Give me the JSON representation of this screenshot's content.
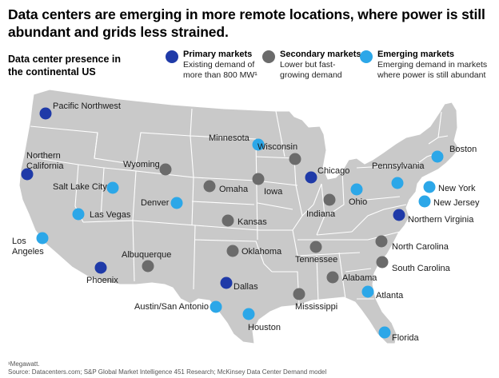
{
  "title_line1": "Data centers are emerging in more remote locations, where power is still",
  "title_line2": "abundant and grids less strained.",
  "subtitle_line1": "Data center presence in",
  "subtitle_line2": "the continental US",
  "colors": {
    "primary": "#1f3aa8",
    "secondary": "#6b6b6b",
    "emerging": "#2ca7e8",
    "land": "#c9c9c9",
    "border": "#ffffff"
  },
  "legend": [
    {
      "type": "primary",
      "title": "Primary markets",
      "line1": "Existing demand of",
      "line2": "more than 800 MW¹"
    },
    {
      "type": "secondary",
      "title": "Secondary markets",
      "line1": "Lower but fast-",
      "line2": "growing demand"
    },
    {
      "type": "emerging",
      "title": "Emerging markets",
      "line1": "Emerging demand in markets",
      "line2": "where power is still abundant"
    }
  ],
  "markets": [
    {
      "name": "Pacific Northwest",
      "type": "primary",
      "lines": [
        "Pacific Northwest"
      ]
    },
    {
      "name": "Northern California",
      "type": "primary",
      "lines": [
        "Northern",
        "California"
      ]
    },
    {
      "name": "Phoenix",
      "type": "primary",
      "lines": [
        "Phoenix"
      ]
    },
    {
      "name": "Dallas",
      "type": "primary",
      "lines": [
        "Dallas"
      ]
    },
    {
      "name": "Chicago",
      "type": "primary",
      "lines": [
        "Chicago"
      ]
    },
    {
      "name": "Northern Virginia",
      "type": "primary",
      "lines": [
        "Northern Virginia"
      ]
    },
    {
      "name": "Wyoming",
      "type": "secondary",
      "lines": [
        "Wyoming"
      ]
    },
    {
      "name": "Albuquerque",
      "type": "secondary",
      "lines": [
        "Albuquerque"
      ]
    },
    {
      "name": "Omaha",
      "type": "secondary",
      "lines": [
        "Omaha"
      ]
    },
    {
      "name": "Kansas",
      "type": "secondary",
      "lines": [
        "Kansas"
      ]
    },
    {
      "name": "Oklahoma",
      "type": "secondary",
      "lines": [
        "Oklahoma"
      ]
    },
    {
      "name": "Iowa",
      "type": "secondary",
      "lines": [
        "Iowa"
      ]
    },
    {
      "name": "Wisconsin",
      "type": "secondary",
      "lines": [
        "Wisconsin"
      ]
    },
    {
      "name": "Indiana",
      "type": "secondary",
      "lines": [
        "Indiana"
      ]
    },
    {
      "name": "Tennessee",
      "type": "secondary",
      "lines": [
        "Tennessee"
      ]
    },
    {
      "name": "Alabama",
      "type": "secondary",
      "lines": [
        "Alabama"
      ]
    },
    {
      "name": "Mississippi",
      "type": "secondary",
      "lines": [
        "Mississippi"
      ]
    },
    {
      "name": "North Carolina",
      "type": "secondary",
      "lines": [
        "North Carolina"
      ]
    },
    {
      "name": "South Carolina",
      "type": "secondary",
      "lines": [
        "South Carolina"
      ]
    },
    {
      "name": "Salt Lake City",
      "type": "emerging",
      "lines": [
        "Salt Lake City"
      ]
    },
    {
      "name": "Las Vegas",
      "type": "emerging",
      "lines": [
        "Las Vegas"
      ]
    },
    {
      "name": "Los Angeles",
      "type": "emerging",
      "lines": [
        "Los",
        "Angeles"
      ]
    },
    {
      "name": "Denver",
      "type": "emerging",
      "lines": [
        "Denver"
      ]
    },
    {
      "name": "Minnesota",
      "type": "emerging",
      "lines": [
        "Minnesota"
      ]
    },
    {
      "name": "Ohio",
      "type": "emerging",
      "lines": [
        "Ohio"
      ]
    },
    {
      "name": "Pennsylvania",
      "type": "emerging",
      "lines": [
        "Pennsylvania"
      ]
    },
    {
      "name": "Boston",
      "type": "emerging",
      "lines": [
        "Boston"
      ]
    },
    {
      "name": "New York",
      "type": "emerging",
      "lines": [
        "New York"
      ]
    },
    {
      "name": "New Jersey",
      "type": "emerging",
      "lines": [
        "New Jersey"
      ]
    },
    {
      "name": "Atlanta",
      "type": "emerging",
      "lines": [
        "Atlanta"
      ]
    },
    {
      "name": "Florida",
      "type": "emerging",
      "lines": [
        "Florida"
      ]
    },
    {
      "name": "Austin/San Antonio",
      "type": "emerging",
      "lines": [
        "Austin/San Antonio"
      ]
    },
    {
      "name": "Houston",
      "type": "emerging",
      "lines": [
        "Houston"
      ]
    }
  ],
  "footnote_line1": "¹Megawatt.",
  "footnote_line2": "Source: Datacenters.com; S&P Global Market Intelligence 451 Research; McKinsey Data Center Demand model"
}
